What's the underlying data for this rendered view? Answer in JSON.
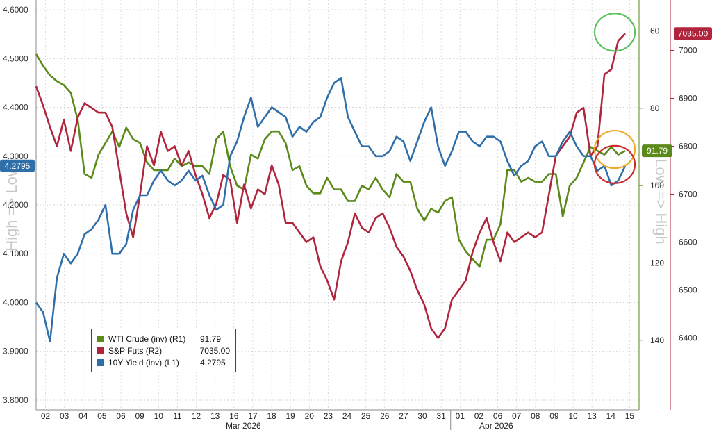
{
  "chart_data": {
    "type": "line",
    "title": "",
    "xlabel": "",
    "months": [
      "Mar 2026",
      "Apr 2026"
    ],
    "x_ticks": [
      "02",
      "03",
      "04",
      "05",
      "06",
      "09",
      "10",
      "11",
      "12",
      "13",
      "16",
      "17",
      "18",
      "19",
      "20",
      "23",
      "24",
      "25",
      "26",
      "27",
      "30",
      "31",
      "01",
      "02",
      "06",
      "07",
      "08",
      "09",
      "10",
      "13",
      "14",
      "15"
    ],
    "axes": {
      "left": {
        "label": "High => Low",
        "ylim": [
          4.62,
          3.78
        ],
        "inverted": true,
        "ticks": [
          "3.8000",
          "3.9000",
          "4.0000",
          "4.1000",
          "4.2000",
          "4.3000",
          "4.4000",
          "4.5000",
          "4.6000"
        ]
      },
      "right1": {
        "label": "Low => High",
        "ylim": [
          52,
          158
        ],
        "inverted": true,
        "ticks": [
          "60",
          "80",
          "100",
          "120",
          "140"
        ]
      },
      "right2": {
        "ylim": [
          6250,
          7105
        ],
        "inverted": false,
        "ticks": [
          "6400",
          "6500",
          "6600",
          "6700",
          "6800",
          "6900",
          "7000"
        ]
      }
    },
    "series": [
      {
        "name": "WTI Crude (inv) (R1)",
        "axis": "right1",
        "color": "#5a8a1a",
        "last_label": "91.79",
        "values": [
          66,
          69,
          71.5,
          73,
          74,
          76,
          83,
          97,
          98,
          92,
          89,
          86,
          90,
          85,
          88,
          89,
          94,
          96,
          96,
          96,
          93,
          95,
          94,
          95,
          95,
          97,
          88,
          86,
          95,
          100,
          101,
          92,
          93,
          88,
          86,
          86,
          89,
          96,
          95,
          100,
          102,
          102,
          98,
          101,
          101,
          104,
          104,
          100,
          101,
          98,
          101,
          103,
          97,
          99,
          99,
          106,
          109,
          106,
          107,
          104,
          103,
          114,
          117,
          119,
          121,
          114,
          114,
          110,
          96,
          96,
          99,
          98,
          99,
          99,
          97,
          97,
          108,
          100,
          98,
          94,
          90,
          91,
          92,
          90,
          92,
          91
        ]
      },
      {
        "name": "S&P Futs (R2)",
        "axis": "right2",
        "color": "#b0243c",
        "last_label": "7035.00",
        "values": [
          6925,
          6885,
          6840,
          6800,
          6855,
          6790,
          6860,
          6890,
          6880,
          6870,
          6870,
          6840,
          6750,
          6660,
          6610,
          6700,
          6800,
          6760,
          6830,
          6790,
          6800,
          6760,
          6790,
          6740,
          6700,
          6650,
          6680,
          6740,
          6730,
          6640,
          6720,
          6670,
          6710,
          6700,
          6760,
          6720,
          6640,
          6640,
          6620,
          6600,
          6610,
          6550,
          6520,
          6480,
          6560,
          6600,
          6660,
          6630,
          6620,
          6650,
          6660,
          6630,
          6590,
          6570,
          6540,
          6500,
          6470,
          6420,
          6400,
          6420,
          6480,
          6500,
          6520,
          6580,
          6620,
          6650,
          6600,
          6560,
          6620,
          6600,
          6610,
          6620,
          6610,
          6620,
          6700,
          6780,
          6800,
          6820,
          6870,
          6880,
          6780,
          6800,
          6950,
          6960,
          7020,
          7035
        ]
      },
      {
        "name": "10Y Yield (inv) (L1)",
        "axis": "left",
        "color": "#2e6ea9",
        "last_label": "4.2795",
        "values": [
          4.0,
          3.98,
          3.92,
          4.05,
          4.1,
          4.08,
          4.1,
          4.14,
          4.15,
          4.17,
          4.2,
          4.1,
          4.1,
          4.12,
          4.19,
          4.22,
          4.22,
          4.25,
          4.27,
          4.25,
          4.24,
          4.25,
          4.27,
          4.25,
          4.26,
          4.22,
          4.19,
          4.2,
          4.3,
          4.33,
          4.38,
          4.42,
          4.36,
          4.38,
          4.4,
          4.39,
          4.38,
          4.34,
          4.36,
          4.35,
          4.37,
          4.38,
          4.42,
          4.45,
          4.46,
          4.38,
          4.35,
          4.32,
          4.32,
          4.3,
          4.3,
          4.31,
          4.34,
          4.33,
          4.29,
          4.33,
          4.37,
          4.4,
          4.32,
          4.28,
          4.31,
          4.35,
          4.35,
          4.33,
          4.32,
          4.34,
          4.34,
          4.33,
          4.29,
          4.26,
          4.28,
          4.29,
          4.32,
          4.33,
          4.3,
          4.3,
          4.33,
          4.35,
          4.32,
          4.3,
          4.3,
          4.27,
          4.28,
          4.24,
          4.25,
          4.28
        ]
      }
    ],
    "legend": {
      "position": "bottom-left",
      "entries": [
        {
          "name": "WTI Crude (inv) (R1)",
          "value": "91.79",
          "color": "#5a8a1a"
        },
        {
          "name": "S&P Futs (R2)",
          "value": "7035.00",
          "color": "#b0243c"
        },
        {
          "name": "10Y Yield (inv) (L1)",
          "value": "4.2795",
          "color": "#2e6ea9"
        }
      ]
    },
    "annotations": [
      {
        "type": "circle",
        "color": "#5cc05c",
        "series": "S&P Futs (R2)",
        "at": "end"
      },
      {
        "type": "circle",
        "color": "#f0a828",
        "series": "WTI Crude (inv) (R1)",
        "at": "end"
      },
      {
        "type": "circle",
        "color": "#cc2a2a",
        "series": "10Y Yield (inv) (L1)",
        "at": "end"
      }
    ]
  }
}
